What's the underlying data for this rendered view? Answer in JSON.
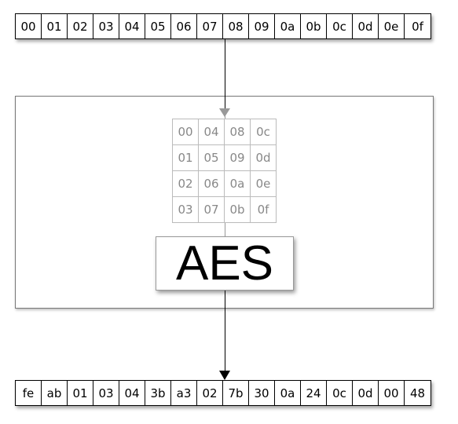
{
  "input_bytes": [
    "00",
    "01",
    "02",
    "03",
    "04",
    "05",
    "06",
    "07",
    "08",
    "09",
    "0a",
    "0b",
    "0c",
    "0d",
    "0e",
    "0f"
  ],
  "state_matrix": [
    [
      "00",
      "04",
      "08",
      "0c"
    ],
    [
      "01",
      "05",
      "09",
      "0d"
    ],
    [
      "02",
      "06",
      "0a",
      "0e"
    ],
    [
      "03",
      "07",
      "0b",
      "0f"
    ]
  ],
  "cipher_label": "AES",
  "output_bytes": [
    "fe",
    "ab",
    "01",
    "03",
    "04",
    "3b",
    "a3",
    "02",
    "7b",
    "30",
    "0a",
    "24",
    "0c",
    "0d",
    "00",
    "48"
  ],
  "colors": {
    "line": "#000000",
    "state_text": "#888888",
    "state_arrow": "#999999"
  }
}
